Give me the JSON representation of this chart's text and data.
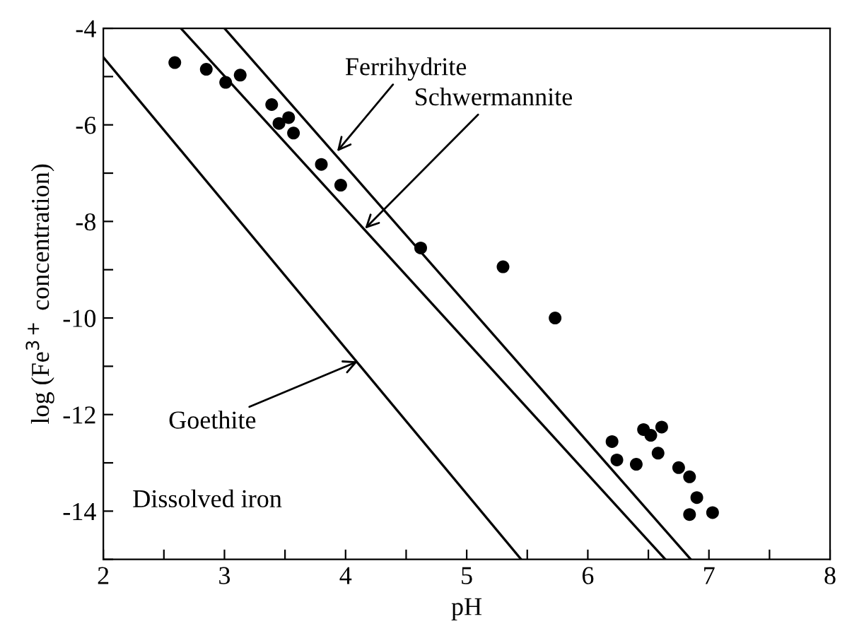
{
  "chart_data": {
    "type": "scatter",
    "xlabel": "pH",
    "ylabel": "log (Fe$^{3+}$ concentration)",
    "xlim": [
      2,
      8
    ],
    "ylim": [
      -15,
      -4
    ],
    "xticks": [
      2,
      {
        "value": 2.5,
        "label": null
      },
      3,
      {
        "value": 3.5,
        "label": null
      },
      4,
      {
        "value": 4.5,
        "label": null
      },
      5,
      {
        "value": 5.5,
        "label": null
      },
      6,
      {
        "value": 6.5,
        "label": null
      },
      7,
      {
        "value": 7.5,
        "label": null
      },
      8
    ],
    "yticks": [
      {
        "value": -15,
        "label": null
      },
      -14,
      {
        "value": -13,
        "label": null
      },
      -12,
      {
        "value": -11,
        "label": null
      },
      -10,
      {
        "value": -9,
        "label": null
      },
      -8,
      {
        "value": -7,
        "label": null
      },
      -6,
      {
        "value": -5,
        "label": null
      },
      -4
    ],
    "grid": false,
    "legend": false,
    "series": [
      {
        "color": "#000000",
        "marker": "circle",
        "x": [
          2.59,
          2.85,
          3.01,
          3.13,
          3.39,
          3.53,
          3.45,
          3.57,
          3.8,
          3.96,
          4.62,
          5.3,
          5.73,
          6.2,
          6.24,
          6.4,
          6.46,
          6.52,
          6.61,
          6.58,
          6.75,
          6.84,
          6.9,
          6.84,
          7.03
        ],
        "values": [
          -4.71,
          -4.85,
          -5.12,
          -4.97,
          -5.58,
          -5.85,
          -5.97,
          -6.17,
          -6.82,
          -7.25,
          -8.55,
          -8.94,
          -10.0,
          -12.56,
          -12.94,
          -13.03,
          -12.31,
          -12.43,
          -12.26,
          -12.8,
          -13.1,
          -13.29,
          -13.72,
          -14.07,
          -14.03
        ]
      },
      {
        "type": "line",
        "color": "#000000",
        "marker": "none",
        "line_style": "solid",
        "x": [
          3.0,
          6.85
        ],
        "values": [
          -4,
          -15
        ]
      },
      {
        "type": "line",
        "color": "#000000",
        "marker": "none",
        "line_style": "solid",
        "x": [
          2.64,
          6.64
        ],
        "values": [
          -4,
          -15
        ]
      },
      {
        "type": "line",
        "color": "#000000",
        "marker": "none",
        "line_style": "solid",
        "x": [
          2,
          5.45
        ],
        "values": [
          -4.6,
          -15
        ]
      }
    ],
    "annotations": [
      {
        "text": "Ferrihydrite",
        "x": 3.93,
        "y": -6.55
      },
      {
        "text": "Schwermannite",
        "x": 4.16,
        "y": -8.15
      },
      {
        "text": "Goethite",
        "x": 4.1,
        "y": -10.9
      },
      "Dissolved iron"
    ]
  }
}
